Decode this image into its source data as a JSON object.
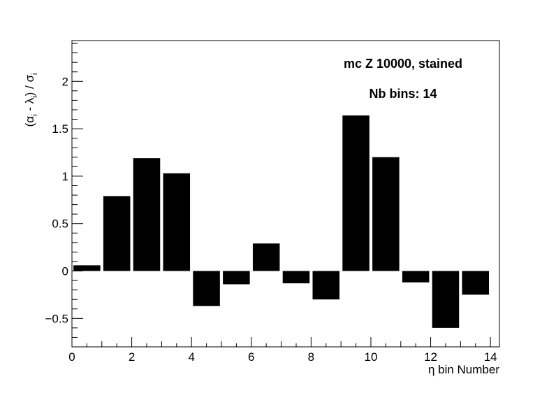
{
  "chart_data": {
    "type": "bar",
    "x": [
      0,
      1,
      2,
      3,
      4,
      5,
      6,
      7,
      8,
      9,
      10,
      11,
      12,
      13
    ],
    "values": [
      0.06,
      0.79,
      1.19,
      1.03,
      -0.37,
      -0.14,
      0.29,
      -0.13,
      -0.3,
      1.64,
      1.2,
      -0.12,
      -0.6,
      -0.25
    ],
    "xlabel": "η bin Number",
    "ylabel_parts": [
      "(α",
      "i",
      " - λ",
      "i",
      ") / σ",
      "i"
    ],
    "xlim": [
      0,
      14.3
    ],
    "ylim": [
      -0.8,
      2.43
    ],
    "x_ticks": [
      0,
      2,
      4,
      6,
      8,
      10,
      12,
      14
    ],
    "x_tick_labels": [
      "0",
      "2",
      "4",
      "6",
      "8",
      "10",
      "12",
      "14"
    ],
    "y_ticks": [
      -0.5,
      0,
      0.5,
      1,
      1.5,
      2
    ],
    "y_tick_labels": [
      "−0.5",
      "0",
      "0.5",
      "1",
      "1.5",
      "2"
    ],
    "annotations": [
      "mc Z 10000, stained",
      "Nb bins: 14"
    ],
    "bar_color": "#000000",
    "grid": false,
    "legend": "none"
  }
}
